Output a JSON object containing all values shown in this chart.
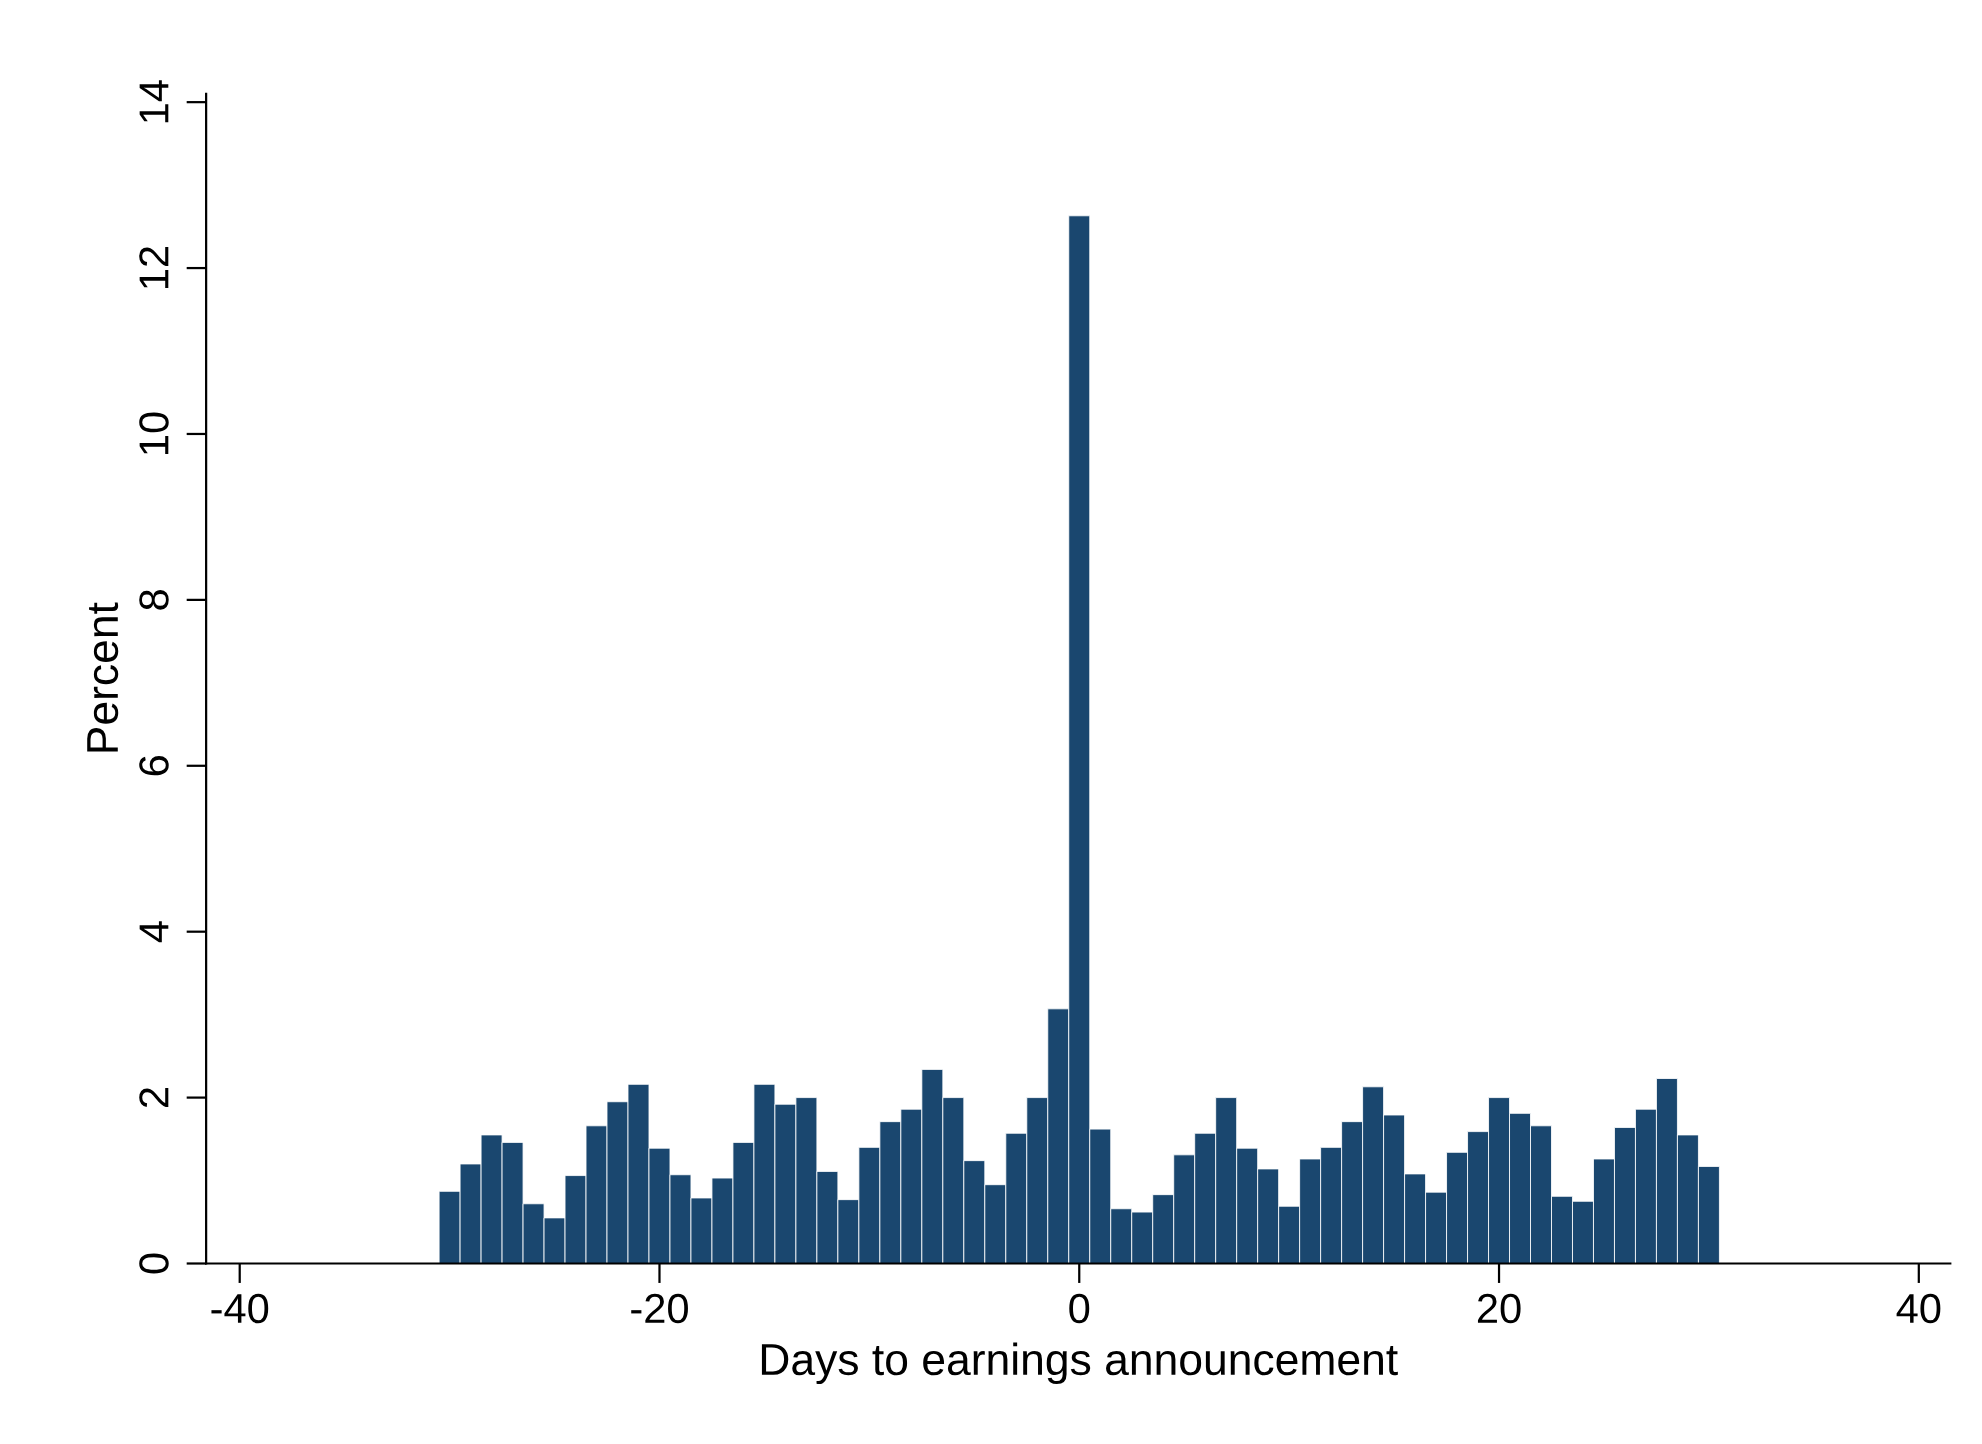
{
  "chart_data": {
    "type": "histogram",
    "xlabel": "Days to earnings announcement",
    "ylabel": "Percent",
    "bins": [
      -30.5,
      -29.5,
      -28.5,
      -27.5,
      -26.5,
      -25.5,
      -24.5,
      -23.5,
      -22.5,
      -21.5,
      -20.5,
      -19.5,
      -18.5,
      -17.5,
      -16.5,
      -15.5,
      -14.5,
      -13.5,
      -12.5,
      -11.5,
      -10.5,
      -9.5,
      -8.5,
      -7.5,
      -6.5,
      -5.5,
      -4.5,
      -3.5,
      -2.5,
      -1.5,
      -0.5,
      0.5,
      1.5,
      2.5,
      3.5,
      4.5,
      5.5,
      6.5,
      7.5,
      8.5,
      9.5,
      10.5,
      11.5,
      12.5,
      13.5,
      14.5,
      15.5,
      16.5,
      17.5,
      18.5,
      19.5,
      20.5,
      21.5,
      22.5,
      23.5,
      24.5,
      25.5,
      26.5,
      27.5,
      28.5,
      29.5,
      30.5
    ],
    "values": [
      0.87,
      1.2,
      1.55,
      1.46,
      0.72,
      0.55,
      1.06,
      1.66,
      1.95,
      2.16,
      1.39,
      1.07,
      0.79,
      1.03,
      1.46,
      2.16,
      1.92,
      2.0,
      1.11,
      0.77,
      1.4,
      1.71,
      1.86,
      2.34,
      2.0,
      1.24,
      0.95,
      1.57,
      2.0,
      3.07,
      12.63,
      1.62,
      0.66,
      0.62,
      0.83,
      1.31,
      1.57,
      2.0,
      1.39,
      1.14,
      0.69,
      1.26,
      1.4,
      1.71,
      2.13,
      1.79,
      1.08,
      0.86,
      1.34,
      1.59,
      2.0,
      1.81,
      1.66,
      0.81,
      0.75,
      1.26,
      1.64,
      1.86,
      2.23,
      1.55,
      1.17
    ],
    "color": "#1a476f",
    "xlim": [
      -41.6,
      41.5
    ],
    "ylim": [
      0,
      14.1
    ],
    "xticks": [
      -40,
      -20,
      0,
      20,
      40
    ],
    "yticks": [
      0,
      2,
      4,
      6,
      8,
      10,
      12,
      14
    ],
    "grid": false
  }
}
